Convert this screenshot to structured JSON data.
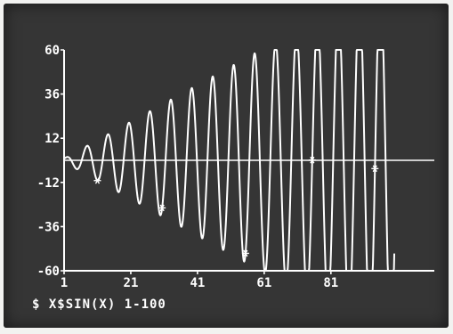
{
  "chart_data": {
    "type": "line",
    "title": "",
    "xlabel": "",
    "ylabel": "",
    "xlim": [
      1,
      112
    ],
    "ylim": [
      -60,
      60
    ],
    "y_ticks": [
      "60",
      "36",
      "12",
      "-12",
      "-36",
      "-60"
    ],
    "x_ticks": [
      "1",
      "21",
      "41",
      "61",
      "81"
    ],
    "grid": false,
    "series": [
      {
        "function": "x*sin(x)",
        "x_range": [
          1,
          100
        ],
        "marker": "line"
      }
    ],
    "caption": "$ X$SIN(X) 1-100",
    "colors": {
      "background": "#353535",
      "foreground": "#ffffff"
    }
  }
}
